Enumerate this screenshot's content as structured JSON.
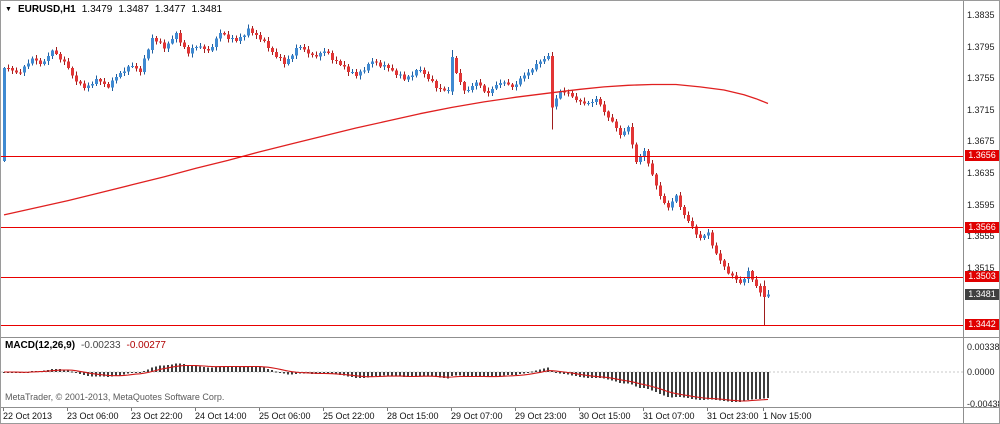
{
  "info_bar": {
    "marker": "▼",
    "symbol": "EURUSD,H1",
    "open": "1.3479",
    "high": "1.3487",
    "low": "1.3477",
    "close": "1.3481"
  },
  "indicator_label": {
    "name": "MACD(12,26,9)",
    "main_value": "-0.00233",
    "signal_value": "-0.00277"
  },
  "footer": {
    "copyright": "MetaTrader, © 2001-2013, MetaQuotes Software Corp."
  },
  "colors": {
    "up_body": "#3f8ad2",
    "up_wick": "#1d5d9f",
    "down_body": "#e23535",
    "down_wick": "#9f1d1d",
    "ma_line": "#e02020",
    "level_line": "#e80000",
    "level_label_bg": "#e00000",
    "current_label_bg": "#404040",
    "macd_histogram": "#3d3d3d",
    "macd_signal": "#d01818",
    "zero_line": "#c8c8c8"
  },
  "chart_data": {
    "type": "candlestick",
    "symbol": "EURUSD",
    "timeframe": "H1",
    "bars_total": 192,
    "first_open": 1.365,
    "noise_amplitude": 0.00025,
    "price_axis": {
      "y_range": [
        1.3427,
        1.3853
      ],
      "ticks": [
        "1.3835",
        "1.3795",
        "1.3755",
        "1.3715",
        "1.3675",
        "1.3635",
        "1.3595",
        "1.3555",
        "1.3515"
      ]
    },
    "level_lines": [
      {
        "price": 1.3656,
        "label": "1.3656"
      },
      {
        "price": 1.3566,
        "label": "1.3566"
      },
      {
        "price": 1.3503,
        "label": "1.3503"
      },
      {
        "price": 1.3442,
        "label": "1.3442"
      }
    ],
    "current_price": {
      "price": 1.3481,
      "label": "1.3481"
    },
    "time_axis": [
      {
        "label": "22 Oct 2013",
        "bar": 0
      },
      {
        "label": "23 Oct 06:00",
        "bar": 16
      },
      {
        "label": "23 Oct 22:00",
        "bar": 32
      },
      {
        "label": "24 Oct 14:00",
        "bar": 48
      },
      {
        "label": "25 Oct 06:00",
        "bar": 64
      },
      {
        "label": "25 Oct 22:00",
        "bar": 80
      },
      {
        "label": "28 Oct 15:00",
        "bar": 96
      },
      {
        "label": "29 Oct 07:00",
        "bar": 112
      },
      {
        "label": "29 Oct 23:00",
        "bar": 128
      },
      {
        "label": "30 Oct 15:00",
        "bar": 144
      },
      {
        "label": "31 Oct 07:00",
        "bar": 160
      },
      {
        "label": "31 Oct 23:00",
        "bar": 176
      },
      {
        "label": "1 Nov 15:00",
        "bar": 190
      }
    ],
    "price_path": [
      [
        0,
        1.3768
      ],
      [
        4,
        1.3762
      ],
      [
        7,
        1.3781
      ],
      [
        9,
        1.3772
      ],
      [
        12,
        1.3789
      ],
      [
        15,
        1.3776
      ],
      [
        17,
        1.3758
      ],
      [
        20,
        1.3742
      ],
      [
        23,
        1.3753
      ],
      [
        26,
        1.3745
      ],
      [
        29,
        1.3762
      ],
      [
        32,
        1.3771
      ],
      [
        34,
        1.3764
      ],
      [
        37,
        1.3806
      ],
      [
        40,
        1.3794
      ],
      [
        43,
        1.381
      ],
      [
        46,
        1.3786
      ],
      [
        48,
        1.3797
      ],
      [
        51,
        1.3789
      ],
      [
        54,
        1.3812
      ],
      [
        58,
        1.3802
      ],
      [
        61,
        1.3816
      ],
      [
        64,
        1.3806
      ],
      [
        67,
        1.3788
      ],
      [
        70,
        1.3774
      ],
      [
        74,
        1.3796
      ],
      [
        77,
        1.3782
      ],
      [
        80,
        1.3789
      ],
      [
        84,
        1.3772
      ],
      [
        88,
        1.3758
      ],
      [
        92,
        1.3776
      ],
      [
        96,
        1.3768
      ],
      [
        100,
        1.3754
      ],
      [
        104,
        1.3766
      ],
      [
        108,
        1.3744
      ],
      [
        111,
        1.3738
      ],
      [
        112,
        1.3782
      ],
      [
        113,
        1.3762
      ],
      [
        115,
        1.3738
      ],
      [
        118,
        1.3749
      ],
      [
        121,
        1.3736
      ],
      [
        124,
        1.3751
      ],
      [
        127,
        1.3744
      ],
      [
        130,
        1.3758
      ],
      [
        133,
        1.3772
      ],
      [
        136,
        1.3784
      ],
      [
        137,
        1.3718
      ],
      [
        139,
        1.374
      ],
      [
        142,
        1.3732
      ],
      [
        145,
        1.3722
      ],
      [
        148,
        1.3728
      ],
      [
        151,
        1.3706
      ],
      [
        154,
        1.3684
      ],
      [
        156,
        1.3692
      ],
      [
        158,
        1.365
      ],
      [
        160,
        1.3661
      ],
      [
        162,
        1.3634
      ],
      [
        164,
        1.3604
      ],
      [
        166,
        1.3592
      ],
      [
        168,
        1.3605
      ],
      [
        170,
        1.3582
      ],
      [
        172,
        1.3566
      ],
      [
        174,
        1.3552
      ],
      [
        176,
        1.3559
      ],
      [
        178,
        1.3532
      ],
      [
        180,
        1.3516
      ],
      [
        182,
        1.3504
      ],
      [
        184,
        1.3496
      ],
      [
        186,
        1.3509
      ],
      [
        188,
        1.3492
      ],
      [
        190,
        1.3478
      ],
      [
        191,
        1.3481
      ]
    ],
    "special_candles": [
      {
        "bar": 112,
        "o": 1.3738,
        "h": 1.3791,
        "l": 1.3734,
        "c": 1.3782
      },
      {
        "bar": 137,
        "o": 1.3783,
        "h": 1.3788,
        "l": 1.369,
        "c": 1.3718
      },
      {
        "bar": 190,
        "o": 1.3492,
        "h": 1.3499,
        "l": 1.3442,
        "c": 1.3478
      },
      {
        "bar": 191,
        "o": 1.3479,
        "h": 1.3487,
        "l": 1.3477,
        "c": 1.3481
      }
    ],
    "ma_line": {
      "points": [
        [
          0,
          1.3582
        ],
        [
          8,
          1.3591
        ],
        [
          16,
          1.36
        ],
        [
          24,
          1.361
        ],
        [
          32,
          1.362
        ],
        [
          40,
          1.363
        ],
        [
          48,
          1.3641
        ],
        [
          56,
          1.3651
        ],
        [
          64,
          1.3662
        ],
        [
          72,
          1.3672
        ],
        [
          80,
          1.3682
        ],
        [
          88,
          1.3692
        ],
        [
          96,
          1.3701
        ],
        [
          104,
          1.371
        ],
        [
          112,
          1.3718
        ],
        [
          120,
          1.3725
        ],
        [
          128,
          1.3731
        ],
        [
          136,
          1.3736
        ],
        [
          144,
          1.3741
        ],
        [
          150,
          1.3744
        ],
        [
          156,
          1.3746
        ],
        [
          162,
          1.3747
        ],
        [
          168,
          1.3747
        ],
        [
          174,
          1.3744
        ],
        [
          180,
          1.374
        ],
        [
          185,
          1.3734
        ],
        [
          188,
          1.3729
        ],
        [
          191,
          1.3723
        ]
      ]
    },
    "macd": {
      "params": "12,26,9",
      "main": -0.00233,
      "signal": -0.00277,
      "axis_ticks": [
        {
          "label": "0.00338",
          "value": 0.00338
        },
        {
          "label": "0.0000",
          "value": 0.0
        },
        {
          "label": "-0.00438",
          "value": -0.00438
        }
      ]
    }
  }
}
